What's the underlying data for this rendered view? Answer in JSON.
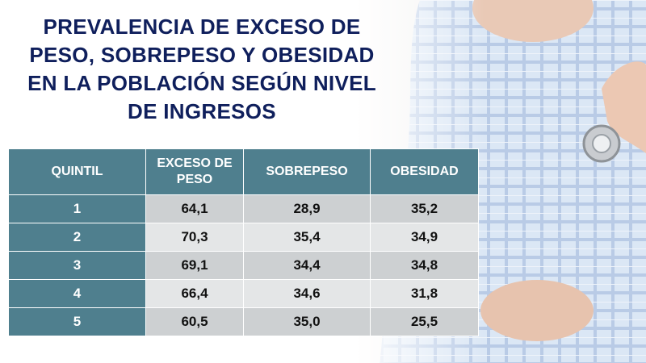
{
  "slide": {
    "title": "PREVALENCIA DE EXCESO DE\nPESO, SOBREPESO Y OBESIDAD\nEN LA POBLACIÓN SEGÚN NIVEL\nDE INGRESOS"
  },
  "table": {
    "headers": [
      "QUINTIL",
      "EXCESO DE PESO",
      "SOBREPESO",
      "OBESIDAD"
    ],
    "rows": [
      [
        "1",
        "64,1",
        "28,9",
        "35,2"
      ],
      [
        "2",
        "70,3",
        "35,4",
        "34,9"
      ],
      [
        "3",
        "69,1",
        "34,4",
        "34,8"
      ],
      [
        "4",
        "66,4",
        "34,6",
        "31,8"
      ],
      [
        "5",
        "60,5",
        "35,0",
        "25,5"
      ]
    ]
  }
}
